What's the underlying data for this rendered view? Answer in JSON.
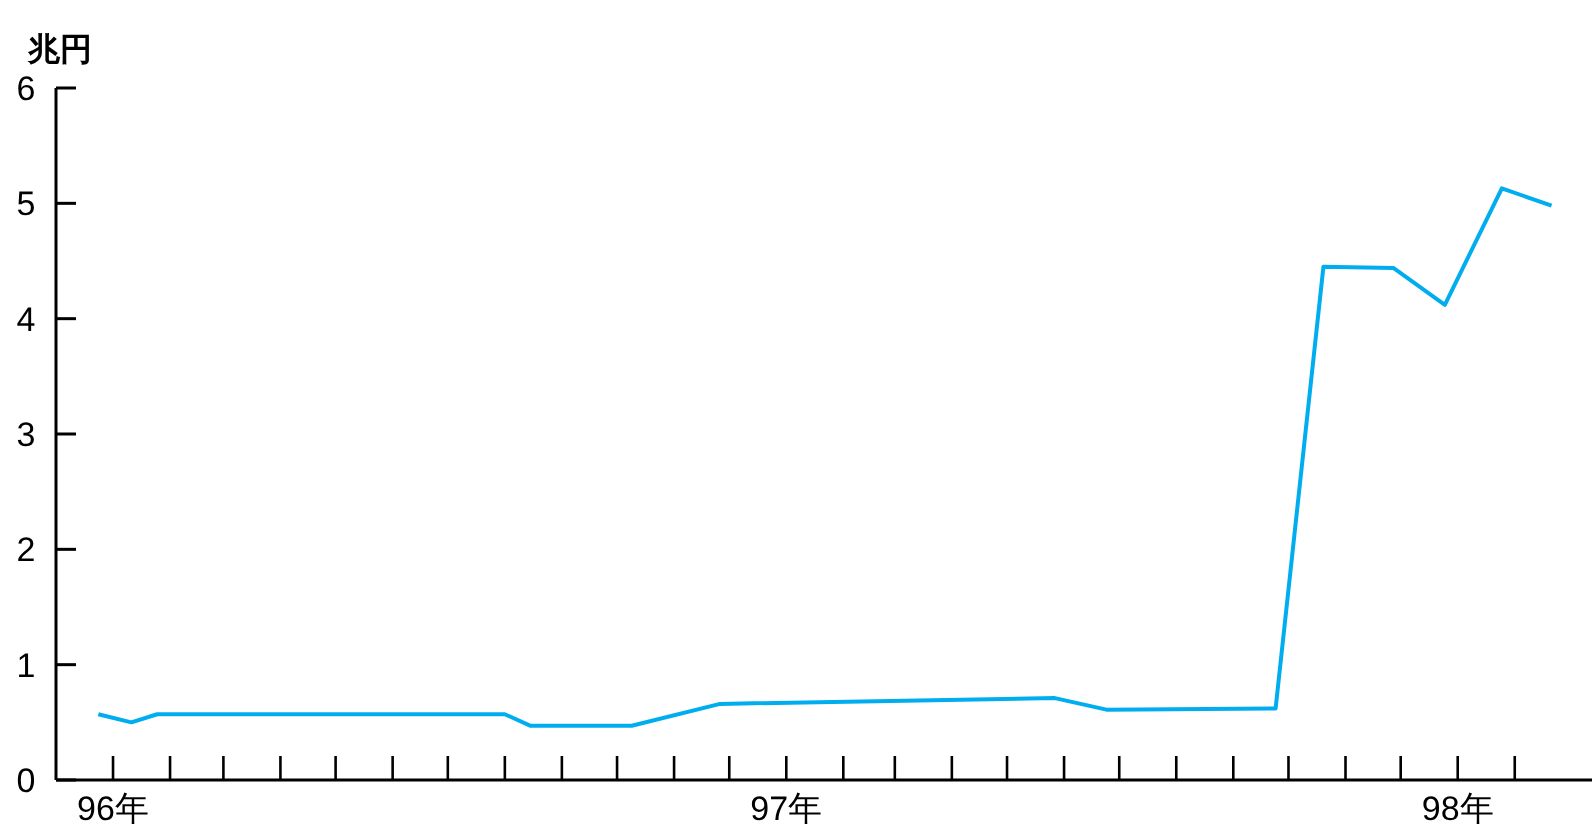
{
  "chart_data": {
    "type": "line",
    "ylabel": "兆円",
    "x": [
      "1995-12-24",
      "1996-01-11",
      "1996-01-25",
      "1996-08-01",
      "1996-08-15",
      "1996-10-09",
      "1996-11-26",
      "1997-05-27",
      "1997-06-24",
      "1997-09-24",
      "1997-10-20",
      "1997-11-27",
      "1997-12-25",
      "1998-01-25",
      "1998-02-21"
    ],
    "series": [
      {
        "color": "#00aeef",
        "values": [
          0.57,
          0.5,
          0.57,
          0.57,
          0.47,
          0.47,
          0.66,
          0.71,
          0.61,
          0.62,
          4.45,
          4.44,
          4.12,
          5.13,
          4.98
        ]
      }
    ],
    "xlim": [
      "1995-12-01",
      "1998-03-15"
    ],
    "ylim": [
      0,
      6
    ],
    "yticks": [
      0,
      1,
      2,
      3,
      4,
      5,
      6
    ],
    "xticks": [
      {
        "value": "1996-01",
        "label": "96年"
      },
      {
        "value": "1996-02",
        "label": null
      },
      {
        "value": "1996-03",
        "label": null
      },
      {
        "value": "1996-04",
        "label": null
      },
      {
        "value": "1996-05",
        "label": null
      },
      {
        "value": "1996-06",
        "label": null
      },
      {
        "value": "1996-07",
        "label": null
      },
      {
        "value": "1996-08",
        "label": null
      },
      {
        "value": "1996-09",
        "label": null
      },
      {
        "value": "1996-10",
        "label": null
      },
      {
        "value": "1996-11",
        "label": null
      },
      {
        "value": "1996-12",
        "label": null
      },
      {
        "value": "1997-01",
        "label": "97年"
      },
      {
        "value": "1997-02",
        "label": null
      },
      {
        "value": "1997-03",
        "label": null
      },
      {
        "value": "1997-04",
        "label": null
      },
      {
        "value": "1997-05",
        "label": null
      },
      {
        "value": "1997-06",
        "label": null
      },
      {
        "value": "1997-07",
        "label": null
      },
      {
        "value": "1997-08",
        "label": null
      },
      {
        "value": "1997-09",
        "label": null
      },
      {
        "value": "1997-10",
        "label": null
      },
      {
        "value": "1997-11",
        "label": null
      },
      {
        "value": "1997-12",
        "label": null
      },
      {
        "value": "1998-01",
        "label": "98年"
      },
      {
        "value": "1998-02",
        "label": null
      }
    ],
    "grid": false,
    "legend": false,
    "marker": "none",
    "line_style": "solid"
  }
}
